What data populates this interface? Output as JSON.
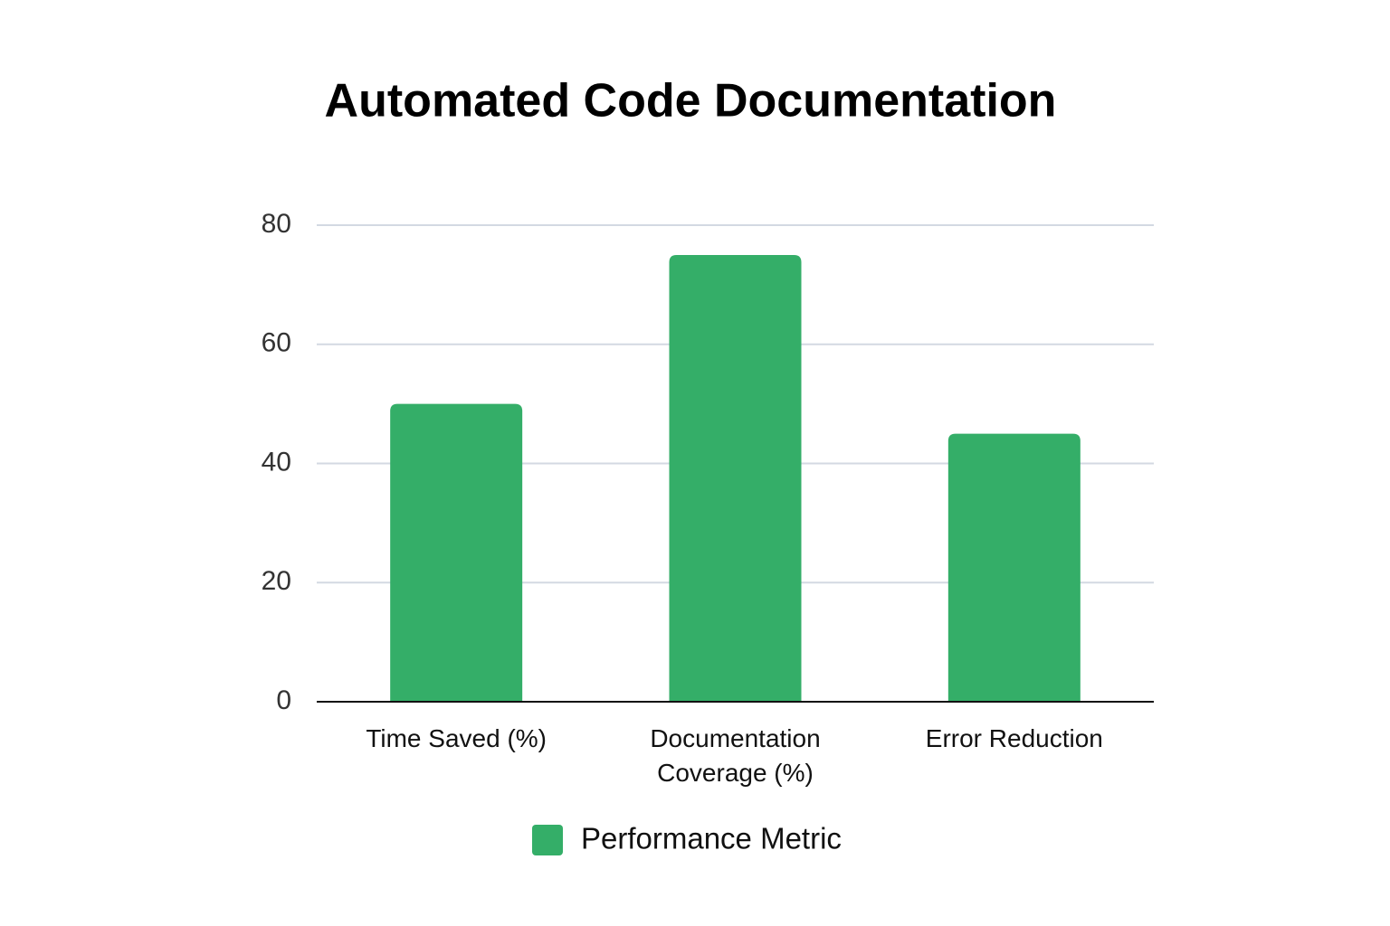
{
  "chart_data": {
    "type": "bar",
    "title": "Automated Code Documentation",
    "categories": [
      "Time Saved (%)",
      "Documentation Coverage (%)",
      "Error Reduction"
    ],
    "series": [
      {
        "name": "Performance Metric",
        "color": "#34ae68",
        "values": [
          50,
          75,
          45
        ]
      }
    ],
    "ylim": [
      0,
      80
    ],
    "yticks": [
      0,
      20,
      40,
      60,
      80
    ],
    "grid": true,
    "legend": "bottom"
  }
}
